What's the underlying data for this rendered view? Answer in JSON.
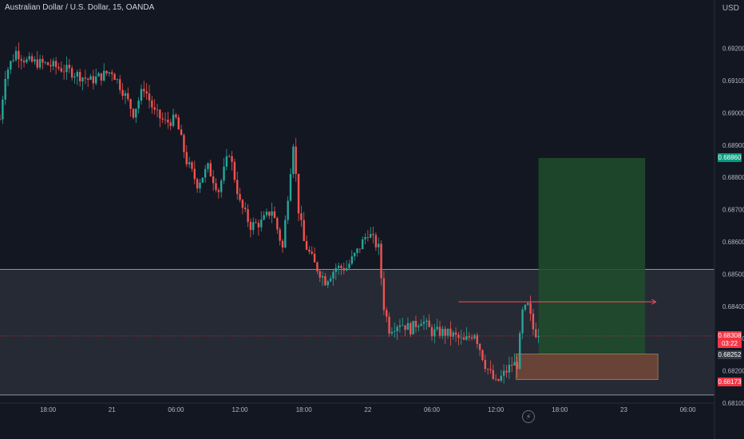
{
  "header": {
    "symbol": "Australian Dollar / U.S. Dollar, 15, OANDA"
  },
  "axis": {
    "currency": "USD"
  },
  "chart_data": {
    "type": "candlestick",
    "title": "Australian Dollar / U.S. Dollar, 15, OANDA",
    "ylim": [
      0.681,
      0.6935
    ],
    "y_ticks": [
      "0.69200",
      "0.69100",
      "0.69000",
      "0.68900",
      "0.68800",
      "0.68700",
      "0.68600",
      "0.68500",
      "0.68400",
      "0.68300",
      "0.68200",
      "0.68100"
    ],
    "y_tick_values": [
      0.692,
      0.691,
      0.69,
      0.689,
      0.688,
      0.687,
      0.686,
      0.685,
      0.684,
      0.683,
      0.682,
      0.681
    ],
    "x_ticks": [
      "18:00",
      "21",
      "06:00",
      "12:00",
      "18:00",
      "22",
      "06:00",
      "12:00",
      "18:00",
      "23",
      "06:00"
    ],
    "x_tick_hours": [
      -6,
      0,
      6,
      12,
      18,
      24,
      30,
      36,
      42,
      48,
      54
    ],
    "x_range_hours": [
      -10.5,
      56.5
    ],
    "price_path": [
      [
        -10.5,
        0.6898
      ],
      [
        -10,
        0.6912
      ],
      [
        -9,
        0.6919
      ],
      [
        -8,
        0.6916
      ],
      [
        -6,
        0.6915
      ],
      [
        -4,
        0.6913
      ],
      [
        -2,
        0.691
      ],
      [
        0,
        0.6913
      ],
      [
        1,
        0.6907
      ],
      [
        2,
        0.69
      ],
      [
        3,
        0.6908
      ],
      [
        4,
        0.69
      ],
      [
        5,
        0.6897
      ],
      [
        6,
        0.6898
      ],
      [
        7,
        0.6885
      ],
      [
        8,
        0.6878
      ],
      [
        9,
        0.6883
      ],
      [
        10,
        0.6876
      ],
      [
        11,
        0.6888
      ],
      [
        12,
        0.6872
      ],
      [
        13,
        0.6865
      ],
      [
        14,
        0.6866
      ],
      [
        15,
        0.687
      ],
      [
        16,
        0.6858
      ],
      [
        17,
        0.6891
      ],
      [
        17.5,
        0.687
      ],
      [
        18,
        0.686
      ],
      [
        19,
        0.6853
      ],
      [
        20,
        0.6848
      ],
      [
        21,
        0.6852
      ],
      [
        22,
        0.6852
      ],
      [
        23,
        0.6857
      ],
      [
        24,
        0.6863
      ],
      [
        25,
        0.6858
      ],
      [
        25.5,
        0.684
      ],
      [
        26,
        0.6833
      ],
      [
        27,
        0.6835
      ],
      [
        28,
        0.6833
      ],
      [
        29,
        0.6836
      ],
      [
        30,
        0.6832
      ],
      [
        31,
        0.6832
      ],
      [
        32,
        0.6831
      ],
      [
        33,
        0.6829
      ],
      [
        34,
        0.6832
      ],
      [
        35,
        0.6822
      ],
      [
        36,
        0.6816
      ],
      [
        36.5,
        0.6818
      ],
      [
        37,
        0.682
      ],
      [
        37.5,
        0.6822
      ],
      [
        38,
        0.6822
      ],
      [
        38.5,
        0.6838
      ],
      [
        39,
        0.684
      ],
      [
        39.5,
        0.6833
      ],
      [
        40,
        0.68308
      ]
    ],
    "annotations": {
      "zone_high": 0.68515,
      "zone_low": 0.68125,
      "resistance_line": 0.68414,
      "current_price": 0.68308,
      "entry": 0.68252,
      "target": 0.6886,
      "stop": 0.68173,
      "position_start_hour": 40,
      "position_end_hour": 50
    },
    "price_labels": {
      "target": "0.68860",
      "current": "0.68308",
      "countdown": "03:22",
      "entry": "0.68252",
      "stop": "0.68173"
    },
    "colors": {
      "up": "#26a69a",
      "down": "#ef5350",
      "background": "#131722",
      "zone": "#363a45",
      "target_zone": "#1e4d2b",
      "stop_zone": "#7a4a3a",
      "resistance": "#f7525f",
      "current_line": "#f23645",
      "target_tag": "#089981",
      "current_tag": "#f23645",
      "entry_tag": "#363a45",
      "stop_tag": "#f23645"
    }
  }
}
